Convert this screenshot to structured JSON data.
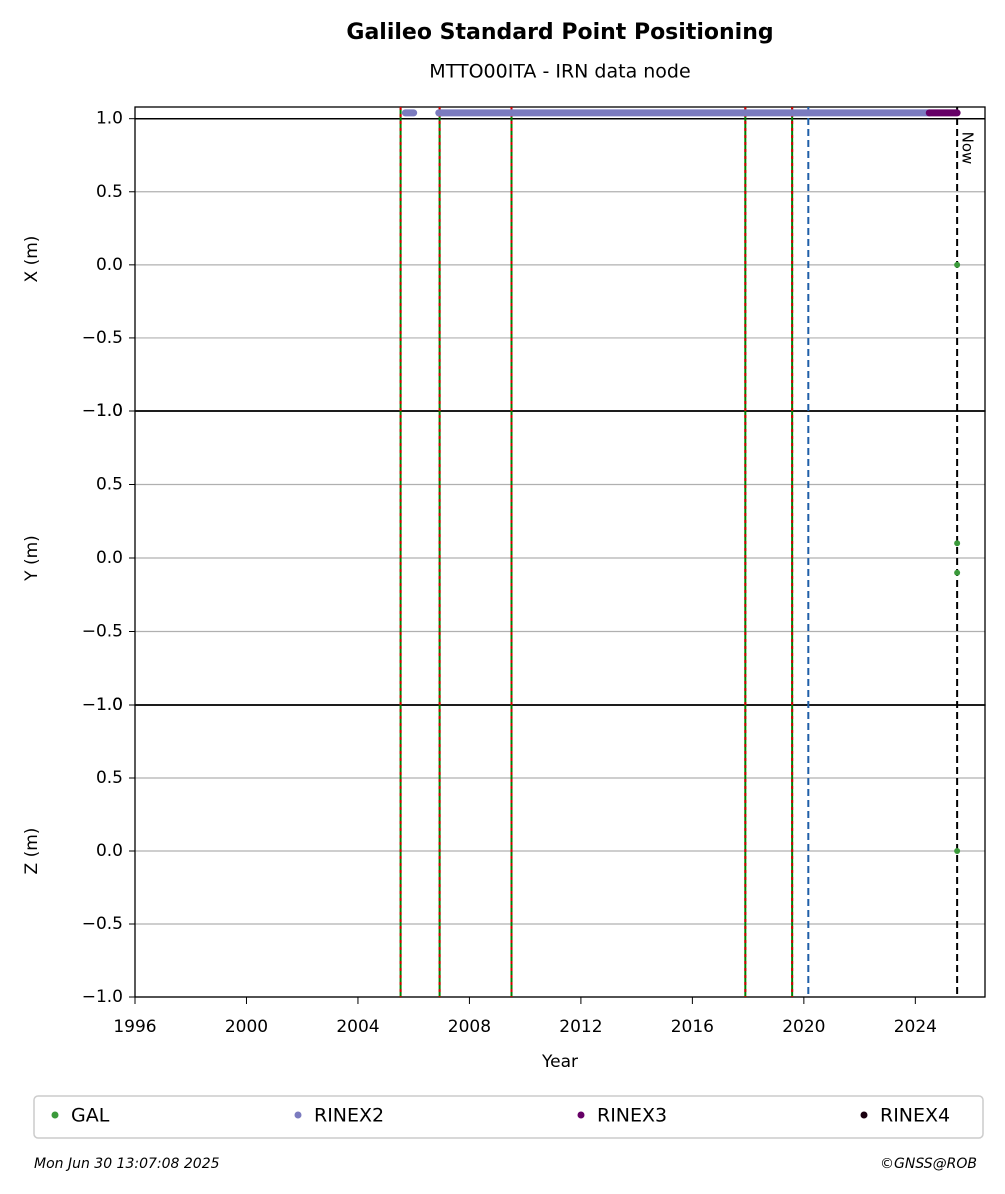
{
  "chart_data": {
    "type": "scatter",
    "title": "Galileo Standard Point Positioning",
    "subtitle": "MTTO00ITA - IRN data node",
    "xlabel": "Year",
    "xlim": [
      1996,
      2026.5
    ],
    "xticks": [
      1996,
      2000,
      2004,
      2008,
      2012,
      2016,
      2020,
      2024
    ],
    "grid": true,
    "hline": 1,
    "panels": [
      {
        "ylabel": "X (m)",
        "ylim": [
          -1,
          1.08
        ],
        "yticks": [
          {
            "value": 1,
            "label": "1.0"
          },
          0.5,
          {
            "value": 0,
            "label": "0.0"
          },
          {
            "value": -0.5,
            "label": "−0.5"
          },
          {
            "value": -1,
            "label": "−1.0"
          }
        ],
        "x": [
          2025.5
        ],
        "values": [
          0
        ]
      },
      {
        "ylabel": "Y (m)",
        "ylim": [
          -1,
          1
        ],
        "yticks": [
          {
            "value": 1,
            "label": "1.0"
          },
          0.5,
          {
            "value": 0,
            "label": "0.0"
          },
          {
            "value": -0.5,
            "label": "−0.5"
          },
          {
            "value": -1,
            "label": "−1.0"
          }
        ],
        "x": [
          2025.5,
          2025.5
        ],
        "values": [
          0.1,
          -0.1
        ]
      },
      {
        "ylabel": "Z (m)",
        "ylim": [
          -1,
          1
        ],
        "yticks": [
          {
            "value": 1,
            "label": "1.0"
          },
          0.5,
          {
            "value": 0,
            "label": "0.0"
          },
          {
            "value": -0.5,
            "label": "−0.5"
          },
          {
            "value": -1,
            "label": "−1.0"
          }
        ],
        "x": [
          2025.5
        ],
        "values": [
          0
        ]
      }
    ],
    "series": [
      {
        "name": "GAL",
        "color": "#3a9a3a"
      },
      {
        "name": "RINEX2",
        "color": "#7b7bbf",
        "ranges": [
          [
            2005.7,
            2006.0
          ],
          [
            2006.9,
            2024.5
          ]
        ],
        "y": 1.04
      },
      {
        "name": "RINEX3",
        "color": "#660066",
        "ranges": [
          [
            2024.5,
            2025.5
          ]
        ],
        "y": 1.04
      },
      {
        "name": "RINEX4",
        "color": "#1a0010"
      }
    ],
    "events": [
      {
        "x": 2005.53,
        "color": "#008000"
      },
      {
        "x": 2006.93,
        "color": "#008000"
      },
      {
        "x": 2009.51,
        "color": "#008000"
      },
      {
        "x": 2017.9,
        "color": "#008000"
      },
      {
        "x": 2019.58,
        "color": "#008000"
      },
      {
        "x": 2020.16,
        "color": "#1f5fa8"
      }
    ],
    "now": {
      "x": 2025.5,
      "label": "Now"
    },
    "footer_left": "Mon Jun 30 13:07:08 2025",
    "footer_right": "©GNSS@ROB"
  }
}
